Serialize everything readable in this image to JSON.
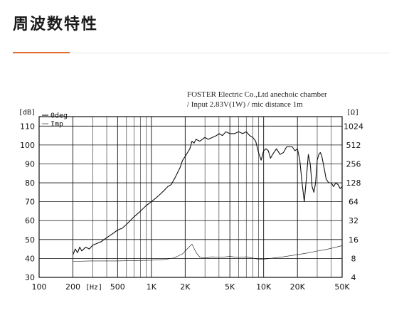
{
  "page": {
    "heading": "周波数特性",
    "accent": "#e06a2c"
  },
  "chart_data": {
    "type": "line",
    "caption_line1": "FOSTER Electric Co.,Ltd  anechoic chamber",
    "caption_line2": "/ Input 2.83V(1W) / mic distance 1m",
    "left_unit": "[dB]",
    "right_unit": "[Ω]",
    "x_unit": "[Hz]",
    "xscale": "log",
    "xlim": [
      100,
      50000
    ],
    "ylim": [
      30,
      115
    ],
    "right_axis_scale": "log2",
    "right_lim": [
      4,
      1448
    ],
    "grid": true,
    "legend_position": "top-left",
    "x_tick_labels": [
      {
        "v": 100,
        "t": "100"
      },
      {
        "v": 200,
        "t": "200"
      },
      {
        "v": 500,
        "t": "500"
      },
      {
        "v": 1000,
        "t": "1K"
      },
      {
        "v": 2000,
        "t": "2K"
      },
      {
        "v": 5000,
        "t": "5K"
      },
      {
        "v": 10000,
        "t": "10K"
      },
      {
        "v": 20000,
        "t": "20K"
      },
      {
        "v": 50000,
        "t": "50K"
      }
    ],
    "y_ticks": [
      30,
      40,
      50,
      60,
      70,
      80,
      90,
      100,
      110
    ],
    "right_ticks": [
      4,
      8,
      16,
      32,
      64,
      128,
      256,
      512,
      1024
    ],
    "series": [
      {
        "name": "0deg",
        "axis": "left",
        "style": "solid",
        "x": [
          200,
          210,
          220,
          230,
          240,
          260,
          280,
          300,
          330,
          360,
          400,
          450,
          500,
          550,
          600,
          700,
          800,
          900,
          1000,
          1100,
          1200,
          1300,
          1400,
          1500,
          1600,
          1700,
          1800,
          1900,
          2000,
          2100,
          2200,
          2300,
          2400,
          2500,
          2700,
          3000,
          3200,
          3500,
          3800,
          4000,
          4300,
          4600,
          5000,
          5500,
          6000,
          6500,
          7000,
          7500,
          8000,
          8500,
          9000,
          9500,
          10000,
          10500,
          11000,
          11500,
          12000,
          13000,
          14000,
          15000,
          16000,
          17000,
          18000,
          19000,
          20000,
          21000,
          22000,
          23000,
          24000,
          25000,
          26000,
          27000,
          28000,
          29000,
          30000,
          31000,
          32000,
          33000,
          34000,
          35000,
          36000,
          38000,
          40000,
          42000,
          44000,
          46000,
          48000,
          50000
        ],
        "y": [
          42,
          45,
          43,
          46,
          44,
          46,
          45,
          47,
          48,
          49,
          51,
          53,
          55,
          56,
          58,
          62,
          65,
          68,
          70,
          72,
          74,
          76,
          78,
          79,
          82,
          85,
          88,
          92,
          94,
          96,
          98,
          102,
          101,
          103,
          102,
          104,
          103,
          104,
          105,
          106,
          105,
          107,
          106,
          106,
          107,
          106,
          107,
          105,
          104,
          102,
          96,
          92,
          97,
          98,
          97,
          93,
          95,
          98,
          95,
          96,
          99,
          99,
          99,
          97,
          98,
          92,
          80,
          70,
          82,
          95,
          90,
          78,
          75,
          80,
          92,
          95,
          96,
          94,
          90,
          86,
          82,
          80,
          80,
          78,
          80,
          79,
          77,
          78
        ]
      },
      {
        "name": "Imp",
        "axis": "right",
        "style": "thin",
        "x": [
          200,
          300,
          500,
          700,
          1000,
          1300,
          1600,
          1900,
          2100,
          2300,
          2500,
          2700,
          3000,
          3500,
          4000,
          5000,
          6000,
          7000,
          8000,
          9000,
          10000,
          12000,
          15000,
          20000,
          25000,
          30000,
          35000,
          40000,
          50000
        ],
        "y": [
          7.2,
          7.3,
          7.3,
          7.4,
          7.5,
          7.7,
          8.2,
          9.5,
          11.5,
          13.5,
          10,
          8.4,
          8.1,
          8.5,
          8.3,
          8.6,
          8.3,
          8.5,
          8.1,
          7.8,
          7.8,
          8.1,
          8.5,
          9.2,
          9.8,
          10.5,
          11,
          11.6,
          12.8
        ]
      }
    ]
  }
}
